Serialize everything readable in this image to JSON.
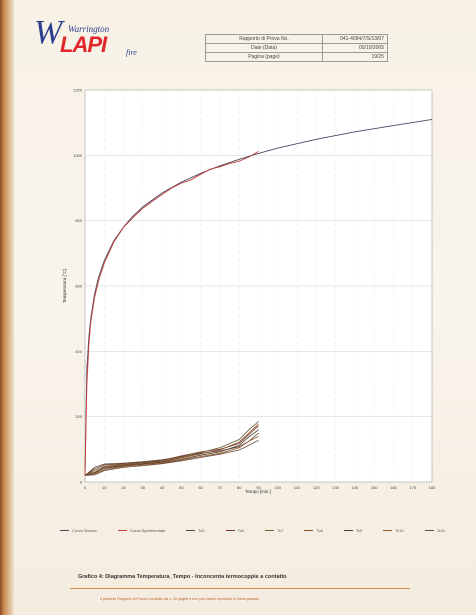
{
  "logo": {
    "w": "W",
    "top": "Warrington",
    "main": "LAPI",
    "fire": "fire"
  },
  "header_table": [
    {
      "label": "Rapporto di Prova No.",
      "value": "041-4094/7/S/13/07"
    },
    {
      "label": "Date (Data)",
      "value": "05/10/2005"
    },
    {
      "label": "Pagina (page)",
      "value": "19/25"
    }
  ],
  "caption": "Grafico 4: Diagramma Temperatura_Tempo - Inconcenta termocoppie a contatto",
  "footer_text": "Il presente Rapporto di Prova è costituito da n. 25 pagine e non può essere riprodotto in forma parziale",
  "colors": {
    "teorica": "#4a4a66",
    "sperimentale": "#c8403a",
    "tc": [
      "#5a4a3a",
      "#7a3a2a",
      "#6a5a30",
      "#8a4a28",
      "#4a3a2a",
      "#9a5a2a",
      "#6a4a3a"
    ]
  },
  "chart_data": {
    "type": "line",
    "title": "",
    "xlabel": "Tempo [min.]",
    "ylabel": "Temperatura [°C]",
    "xlim": [
      0,
      180
    ],
    "ylim": [
      0,
      1200
    ],
    "x_ticks": [
      0,
      10,
      20,
      30,
      40,
      50,
      60,
      70,
      80,
      90,
      100,
      110,
      120,
      130,
      140,
      150,
      160,
      170,
      180
    ],
    "y_ticks": [
      0,
      200,
      400,
      600,
      800,
      1000,
      1200
    ],
    "grid": true,
    "legend_position": "bottom",
    "series": [
      {
        "name": "Curva Teorica",
        "x": [
          0,
          1,
          2,
          3,
          5,
          7,
          10,
          15,
          20,
          25,
          30,
          40,
          50,
          60,
          70,
          80,
          90,
          100,
          120,
          140,
          160,
          180
        ],
        "y": [
          20,
          349,
          445,
          502,
          576,
          626,
          678,
          739,
          781,
          815,
          842,
          885,
          918,
          945,
          968,
          988,
          1006,
          1022,
          1049,
          1072,
          1091,
          1110
        ]
      },
      {
        "name": "Curva Sperimentale",
        "x": [
          0,
          1,
          2,
          3,
          5,
          7,
          10,
          15,
          20,
          25,
          30,
          35,
          40,
          45,
          50,
          55,
          60,
          65,
          70,
          75,
          80,
          85,
          90
        ],
        "y": [
          20,
          300,
          420,
          490,
          565,
          615,
          670,
          735,
          780,
          810,
          838,
          860,
          880,
          900,
          915,
          925,
          942,
          958,
          965,
          975,
          982,
          995,
          1012
        ]
      },
      {
        "name": "Tc5",
        "x": [
          0,
          5,
          10,
          20,
          30,
          40,
          50,
          60,
          70,
          80,
          85,
          90
        ],
        "y": [
          20,
          45,
          55,
          58,
          62,
          68,
          78,
          88,
          95,
          108,
          125,
          150
        ]
      },
      {
        "name": "Tc6",
        "x": [
          0,
          5,
          10,
          20,
          30,
          40,
          50,
          60,
          70,
          80,
          85,
          90
        ],
        "y": [
          20,
          40,
          52,
          56,
          60,
          66,
          80,
          92,
          100,
          118,
          145,
          172
        ]
      },
      {
        "name": "Tc7",
        "x": [
          0,
          5,
          10,
          20,
          30,
          40,
          50,
          60,
          70,
          80,
          85,
          90
        ],
        "y": [
          20,
          35,
          48,
          54,
          59,
          64,
          76,
          90,
          105,
          130,
          160,
          185
        ]
      },
      {
        "name": "Tc8",
        "x": [
          0,
          5,
          10,
          20,
          30,
          40,
          50,
          60,
          70,
          80,
          85,
          90
        ],
        "y": [
          20,
          30,
          45,
          52,
          57,
          62,
          74,
          86,
          98,
          122,
          150,
          178
        ]
      },
      {
        "name": "Tc9",
        "x": [
          0,
          5,
          10,
          20,
          30,
          40,
          50,
          60,
          70,
          80,
          85,
          90
        ],
        "y": [
          20,
          28,
          42,
          50,
          55,
          60,
          70,
          82,
          92,
          112,
          138,
          160
        ]
      },
      {
        "name": "Tc10",
        "x": [
          0,
          5,
          10,
          20,
          30,
          40,
          50,
          60,
          70,
          80,
          85,
          90
        ],
        "y": [
          20,
          25,
          38,
          48,
          53,
          58,
          68,
          78,
          88,
          105,
          125,
          140
        ]
      },
      {
        "name": "Tc11",
        "x": [
          0,
          5,
          10,
          20,
          30,
          40,
          50,
          60,
          70,
          80,
          85,
          90
        ],
        "y": [
          20,
          22,
          35,
          45,
          50,
          56,
          65,
          75,
          85,
          98,
          112,
          128
        ]
      }
    ]
  }
}
